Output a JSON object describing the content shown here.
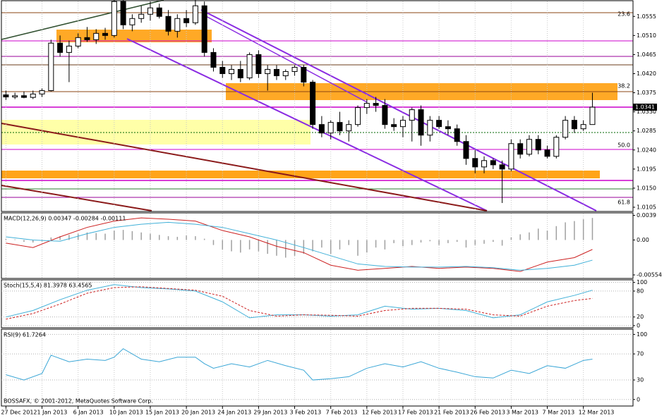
{
  "chart_data": [
    {
      "type": "candlestick",
      "xlim": [
        -0.5,
        69.5
      ],
      "xticks": [
        {
          "value": 0,
          "label": "27 Dec 2012"
        },
        {
          "value": 4,
          "label": "1 Jan 2013"
        },
        {
          "value": 8,
          "label": "6 Jan 2013"
        },
        {
          "value": 12,
          "label": "10 Jan 2013"
        },
        {
          "value": 16,
          "label": "15 Jan 2013"
        },
        {
          "value": 20,
          "label": "20 Jan 2013"
        },
        {
          "value": 24,
          "label": "24 Jan 2013"
        },
        {
          "value": 28,
          "label": "29 Jan 2013"
        },
        {
          "value": 32,
          "label": "3 Feb 2013"
        },
        {
          "value": 36,
          "label": "7 Feb 2013"
        },
        {
          "value": 40,
          "label": "12 Feb 2013"
        },
        {
          "value": 44,
          "label": "17 Feb 2013"
        },
        {
          "value": 48,
          "label": "21 Feb 2013"
        },
        {
          "value": 52,
          "label": "26 Feb 2013"
        },
        {
          "value": 56,
          "label": "3 Mar 2013"
        },
        {
          "value": 60,
          "label": "7 Mar 2013"
        },
        {
          "value": 64,
          "label": "12 Mar 2013"
        }
      ],
      "ylim": [
        1.0095,
        1.0592
      ],
      "yticks": [
        {
          "value": 1.0555,
          "label": "1.0555"
        },
        {
          "value": 1.051,
          "label": "1.0510"
        },
        {
          "value": 1.0465,
          "label": "1.0465"
        },
        {
          "value": 1.042,
          "label": "1.0420"
        },
        {
          "value": 1.0375,
          "label": "1.0375"
        },
        {
          "value": 1.033,
          "label": "1.0330"
        },
        {
          "value": 1.0285,
          "label": "1.0285"
        },
        {
          "value": 1.024,
          "label": "1.0240"
        },
        {
          "value": 1.0195,
          "label": "1.0195"
        },
        {
          "value": 1.015,
          "label": "1.0150"
        },
        {
          "value": 1.0105,
          "label": "1.0105"
        }
      ],
      "last_price": 1.0341,
      "annotations": [
        "23.6",
        "38.2",
        "50.0",
        "61.8"
      ],
      "up_color": "#ffffff",
      "down_color": "#000000",
      "open": [
        1.037,
        1.0365,
        1.0368,
        1.0364,
        1.0372,
        1.038,
        1.0492,
        1.047,
        1.0485,
        1.0505,
        1.05,
        1.0515,
        1.051,
        1.059,
        1.0535,
        1.055,
        1.056,
        1.0575,
        1.0555,
        1.052,
        1.055,
        1.054,
        1.058,
        1.047,
        1.0435,
        1.042,
        1.043,
        1.041,
        1.0465,
        1.042,
        1.043,
        1.0415,
        1.0425,
        1.0435,
        1.04,
        1.03,
        1.028,
        1.0305,
        1.0285,
        1.03,
        1.034,
        1.035,
        1.0345,
        1.03,
        1.0295,
        1.031,
        1.0335,
        1.0275,
        1.031,
        1.0295,
        1.029,
        1.026,
        1.022,
        1.02,
        1.0215,
        1.0205,
        1.0195,
        1.0255,
        1.023,
        1.0265,
        1.024,
        1.0225,
        1.027,
        1.031,
        1.029,
        1.03
      ],
      "high": [
        1.038,
        1.0375,
        1.0378,
        1.038,
        1.0385,
        1.05,
        1.051,
        1.0498,
        1.0515,
        1.053,
        1.0525,
        1.0528,
        1.06,
        1.0595,
        1.056,
        1.058,
        1.059,
        1.0585,
        1.057,
        1.056,
        1.057,
        1.06,
        1.059,
        1.048,
        1.045,
        1.044,
        1.045,
        1.047,
        1.0475,
        1.044,
        1.044,
        1.043,
        1.044,
        1.044,
        1.0405,
        1.032,
        1.031,
        1.033,
        1.031,
        1.0345,
        1.036,
        1.0365,
        1.036,
        1.0315,
        1.032,
        1.034,
        1.0345,
        1.032,
        1.032,
        1.031,
        1.03,
        1.0275,
        1.024,
        1.0225,
        1.022,
        1.0215,
        1.0265,
        1.0265,
        1.0275,
        1.0275,
        1.025,
        1.0275,
        1.032,
        1.032,
        1.031,
        1.0375
      ],
      "low": [
        1.0358,
        1.036,
        1.0362,
        1.036,
        1.0365,
        1.0378,
        1.046,
        1.04,
        1.048,
        1.0495,
        1.049,
        1.05,
        1.0505,
        1.0525,
        1.052,
        1.054,
        1.0545,
        1.055,
        1.051,
        1.0505,
        1.053,
        1.0535,
        1.046,
        1.0425,
        1.041,
        1.0405,
        1.04,
        1.0405,
        1.041,
        1.038,
        1.0405,
        1.0405,
        1.0415,
        1.039,
        1.029,
        1.027,
        1.0265,
        1.0275,
        1.026,
        1.0295,
        1.0325,
        1.033,
        1.029,
        1.0285,
        1.027,
        1.026,
        1.025,
        1.026,
        1.029,
        1.0275,
        1.025,
        1.0205,
        1.0185,
        1.0185,
        1.0195,
        1.0115,
        1.019,
        1.022,
        1.0225,
        1.023,
        1.022,
        1.022,
        1.0265,
        1.028,
        1.0285,
        1.03
      ],
      "close": [
        1.0365,
        1.0368,
        1.0364,
        1.0372,
        1.038,
        1.0492,
        1.047,
        1.0485,
        1.0505,
        1.05,
        1.0515,
        1.051,
        1.059,
        1.0535,
        1.055,
        1.056,
        1.0575,
        1.0555,
        1.052,
        1.055,
        1.054,
        1.058,
        1.047,
        1.0435,
        1.042,
        1.043,
        1.041,
        1.0465,
        1.042,
        1.043,
        1.0415,
        1.0425,
        1.0435,
        1.04,
        1.03,
        1.028,
        1.0305,
        1.0285,
        1.03,
        1.034,
        1.035,
        1.0345,
        1.03,
        1.0295,
        1.031,
        1.0335,
        1.0275,
        1.031,
        1.0295,
        1.029,
        1.026,
        1.022,
        1.02,
        1.0215,
        1.0205,
        1.0195,
        1.0255,
        1.023,
        1.0265,
        1.024,
        1.0225,
        1.027,
        1.031,
        1.029,
        1.03,
        1.0341
      ]
    },
    {
      "type": "combo",
      "title": "MACD(12,26,9) 0.00347 -0.00284 -0.00111",
      "ylim": [
        -0.0061,
        0.0043
      ],
      "yticks": [
        0.0039,
        {
          "value": 0,
          "label": "0.00"
        },
        -0.00554
      ],
      "grid": false,
      "series": [
        {
          "type": "bar",
          "color": "#a0a0a0",
          "values": [
            0.0002,
            0.0001,
            -0.0003,
            -0.0004,
            -0.0002,
            0.0004,
            0.0006,
            0.0008,
            0.001,
            0.0012,
            0.0011,
            0.001,
            0.0015,
            0.0016,
            0.0014,
            0.0012,
            0.001,
            0.0008,
            0.0006,
            0.0005,
            0.0007,
            0.0006,
            0.0002,
            -0.0008,
            -0.0015,
            -0.0018,
            -0.002,
            -0.0015,
            -0.0018,
            -0.0022,
            -0.0025,
            -0.0028,
            -0.0025,
            -0.0022,
            -0.0018,
            -0.0012,
            -0.0022,
            -0.0015,
            -0.0008,
            -0.0025,
            -0.002,
            -0.0012,
            -0.0015,
            -0.0005,
            -0.001,
            -0.0008,
            -0.0004,
            -0.0002,
            -0.0008,
            -0.0005,
            -0.0003,
            -0.0012,
            -0.0008,
            -0.0006,
            -0.0003,
            -0.0009,
            0.0004,
            0.0009,
            0.0012,
            0.0018,
            0.0015,
            0.0022,
            0.0028,
            0.003,
            0.0033,
            0.0035
          ]
        },
        {
          "type": "line",
          "color": "#cc2020",
          "x": [
            0,
            3,
            6,
            9,
            12,
            15,
            18,
            21,
            24,
            27,
            30,
            33,
            36,
            39,
            42,
            45,
            48,
            51,
            54,
            57,
            60,
            63,
            65
          ],
          "values": [
            -0.0005,
            -0.0012,
            0.0005,
            0.002,
            0.003,
            0.0035,
            0.0033,
            0.003,
            0.0015,
            0.0005,
            -0.001,
            -0.002,
            -0.004,
            -0.0048,
            -0.0045,
            -0.0042,
            -0.0045,
            -0.0043,
            -0.0045,
            -0.005,
            -0.0035,
            -0.0028,
            -0.0015
          ]
        },
        {
          "type": "line",
          "color": "#40b0d8",
          "x": [
            0,
            3,
            6,
            9,
            12,
            15,
            18,
            21,
            24,
            27,
            30,
            33,
            36,
            39,
            42,
            45,
            48,
            51,
            54,
            57,
            60,
            63,
            65
          ],
          "values": [
            0.0005,
            0,
            -0.0002,
            0.001,
            0.002,
            0.0025,
            0.0028,
            0.0025,
            0.002,
            0.001,
            0,
            -0.0012,
            -0.0025,
            -0.0038,
            -0.0042,
            -0.0043,
            -0.0043,
            -0.0042,
            -0.0044,
            -0.0048,
            -0.0045,
            -0.004,
            -0.0032
          ]
        }
      ]
    },
    {
      "type": "line",
      "title": "Stoch(15,5,4) 81.3978 63.4565",
      "ylim": [
        -5,
        106
      ],
      "yticks": [
        100,
        80,
        20,
        0
      ],
      "grid": true,
      "series": [
        {
          "color": "#40b0d8",
          "x": [
            0,
            3,
            6,
            9,
            12,
            15,
            18,
            21,
            24,
            27,
            30,
            33,
            36,
            39,
            42,
            45,
            48,
            51,
            54,
            57,
            60,
            63,
            65
          ],
          "values": [
            20,
            35,
            60,
            82,
            95,
            88,
            85,
            80,
            55,
            18,
            25,
            25,
            22,
            25,
            45,
            38,
            40,
            35,
            18,
            25,
            55,
            70,
            82
          ]
        },
        {
          "color": "#cc2020",
          "dash": true,
          "x": [
            0,
            3,
            6,
            9,
            12,
            15,
            18,
            21,
            24,
            27,
            30,
            33,
            36,
            39,
            42,
            45,
            48,
            51,
            54,
            57,
            60,
            63,
            65
          ],
          "values": [
            15,
            28,
            50,
            75,
            88,
            90,
            86,
            82,
            68,
            35,
            22,
            25,
            24,
            22,
            35,
            40,
            40,
            38,
            25,
            22,
            45,
            58,
            63
          ]
        }
      ]
    },
    {
      "type": "line",
      "title": "RSI(9) 61.7264",
      "watermark": "BOSSAFX, © 2001-2012, MetaQuotes Software Corp.",
      "ylim": [
        -10,
        108
      ],
      "yticks": [
        100,
        70,
        30,
        0
      ],
      "grid": true,
      "series": [
        {
          "color": "#3aa6d6",
          "x": [
            0,
            2,
            4,
            5,
            7,
            9,
            11,
            12,
            13,
            15,
            17,
            19,
            21,
            22,
            23,
            25,
            27,
            29,
            31,
            33,
            34,
            36,
            38,
            40,
            42,
            44,
            46,
            48,
            50,
            52,
            54,
            56,
            58,
            60,
            62,
            64,
            65
          ],
          "values": [
            38,
            30,
            40,
            68,
            58,
            62,
            60,
            65,
            78,
            62,
            58,
            65,
            65,
            55,
            48,
            55,
            50,
            60,
            52,
            45,
            30,
            32,
            35,
            48,
            55,
            50,
            58,
            48,
            42,
            35,
            33,
            45,
            40,
            52,
            48,
            60,
            62
          ]
        }
      ]
    }
  ]
}
